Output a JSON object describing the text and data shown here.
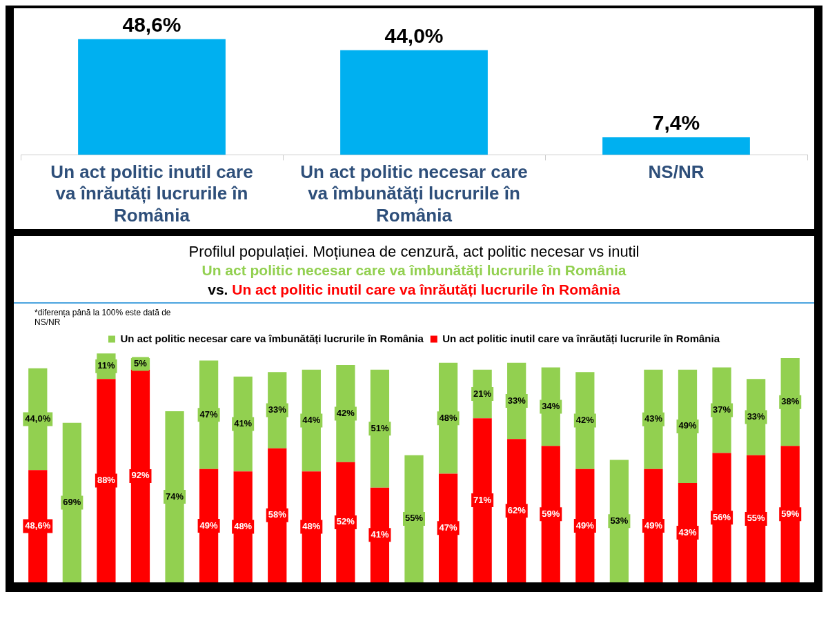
{
  "chart_data": [
    {
      "type": "bar",
      "categories": [
        "Un act politic inutil care va înrăutăți lucrurile în România",
        "Un act politic necesar care va îmbunătăți lucrurile în România",
        "NS/NR"
      ],
      "values": [
        48.6,
        44.0,
        7.4
      ],
      "value_labels": [
        "48,6%",
        "44,0%",
        "7,4%"
      ],
      "color": "#00b0f0",
      "tick_labels": "x",
      "legend": false,
      "grid": false
    },
    {
      "type": "bar",
      "title": "Profilul populației. Moțiunea de cenzură, act politic necesar vs inutil",
      "subtitle": [
        "Un act politic necesar care va îmbunătăți lucrurile în România",
        "vs.",
        "Un act politic inutil care va înrăutăți lucrurile în România"
      ],
      "annotations": [
        "*diferența până la 100% este dată de NS/NR"
      ],
      "stacked": true,
      "legend": "top",
      "tick_labels": false,
      "grid": false,
      "categories": [
        null,
        null,
        null,
        null,
        null,
        null,
        null,
        null,
        null,
        null,
        null,
        null,
        null,
        null,
        null,
        null,
        null,
        null,
        null,
        null,
        null,
        null,
        null
      ],
      "series": [
        {
          "name": "Un act politic inutil care va înrăutăți lucrurile în România",
          "color": "#ff0000",
          "values": [
            48.6,
            null,
            88,
            92,
            null,
            49,
            48,
            58,
            48,
            52,
            41,
            null,
            47,
            71,
            62,
            59,
            49,
            null,
            49,
            43,
            56,
            55,
            59
          ],
          "value_labels": [
            "48,6%",
            null,
            "88%",
            "92%",
            null,
            "49%",
            "48%",
            "58%",
            "48%",
            "52%",
            "41%",
            null,
            "47%",
            "71%",
            "62%",
            "59%",
            "49%",
            null,
            "49%",
            "43%",
            "56%",
            "55%",
            "59%"
          ]
        },
        {
          "name": "Un act politic necesar care va îmbunătăți lucrurile în România",
          "color": "#92d050",
          "values": [
            44.0,
            69,
            11,
            5,
            74,
            47,
            41,
            33,
            44,
            42,
            51,
            55,
            48,
            21,
            33,
            34,
            42,
            53,
            43,
            49,
            37,
            33,
            38
          ],
          "value_labels": [
            "44,0%",
            "69%",
            "11%",
            "5%",
            "74%",
            "47%",
            "41%",
            "33%",
            "44%",
            "42%",
            "51%",
            "55%",
            "48%",
            "21%",
            "33%",
            "34%",
            "42%",
            "53%",
            "43%",
            "49%",
            "37%",
            "33%",
            "38%"
          ]
        }
      ]
    }
  ]
}
